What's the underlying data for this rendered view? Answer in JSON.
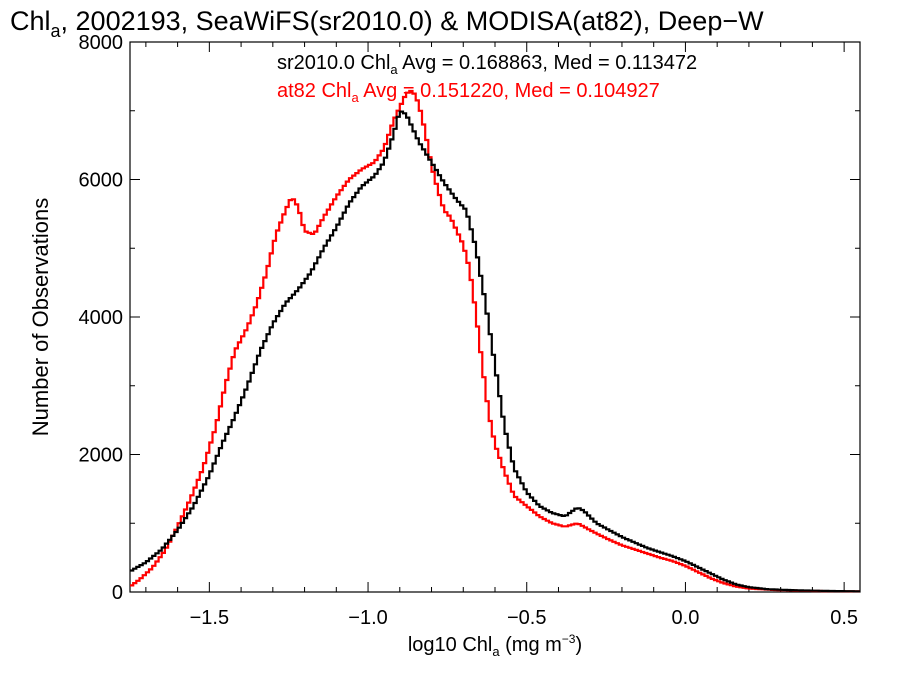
{
  "chart_data": {
    "type": "line",
    "title_parts": {
      "a": "Chl",
      "a_sub": "a",
      "b": ", 2002193, SeaWiFS(sr2010.0) & MODISA(at82), Deep−W"
    },
    "xlabel_parts": {
      "a": "log10 Chl",
      "a_sub": "a",
      "b": " (mg m",
      "sup": "−3",
      "c": ")"
    },
    "ylabel": "Number of Observations",
    "xlim": [
      -1.75,
      0.55
    ],
    "ylim": [
      0,
      8000
    ],
    "xticks": [
      -1.5,
      -1.0,
      -0.5,
      0.0,
      0.5
    ],
    "xtick_labels": [
      "−1.5",
      "−1.0",
      "−0.5",
      "0.0",
      "0.5"
    ],
    "yticks": [
      0,
      2000,
      4000,
      6000,
      8000
    ],
    "ytick_labels": [
      "0",
      "2000",
      "4000",
      "6000",
      "8000"
    ],
    "grid": false,
    "series": [
      {
        "name": "sr2010.0",
        "color": "#000000",
        "legend_parts": {
          "a": "sr2010.0 Chl",
          "a_sub": "a",
          "b": " Avg = 0.168863, Med = 0.113472"
        },
        "points": [
          [
            -1.75,
            300
          ],
          [
            -1.7,
            430
          ],
          [
            -1.65,
            620
          ],
          [
            -1.6,
            900
          ],
          [
            -1.55,
            1250
          ],
          [
            -1.5,
            1700
          ],
          [
            -1.46,
            2150
          ],
          [
            -1.42,
            2550
          ],
          [
            -1.38,
            3000
          ],
          [
            -1.34,
            3500
          ],
          [
            -1.3,
            3900
          ],
          [
            -1.26,
            4200
          ],
          [
            -1.22,
            4400
          ],
          [
            -1.18,
            4650
          ],
          [
            -1.14,
            5000
          ],
          [
            -1.1,
            5300
          ],
          [
            -1.06,
            5650
          ],
          [
            -1.02,
            5900
          ],
          [
            -0.98,
            6050
          ],
          [
            -0.95,
            6250
          ],
          [
            -0.92,
            6650
          ],
          [
            -0.9,
            7000
          ],
          [
            -0.88,
            6950
          ],
          [
            -0.86,
            6750
          ],
          [
            -0.84,
            6550
          ],
          [
            -0.8,
            6250
          ],
          [
            -0.76,
            5950
          ],
          [
            -0.72,
            5700
          ],
          [
            -0.69,
            5550
          ],
          [
            -0.66,
            5000
          ],
          [
            -0.63,
            4200
          ],
          [
            -0.6,
            3300
          ],
          [
            -0.57,
            2400
          ],
          [
            -0.54,
            1800
          ],
          [
            -0.5,
            1450
          ],
          [
            -0.46,
            1250
          ],
          [
            -0.42,
            1150
          ],
          [
            -0.38,
            1100
          ],
          [
            -0.34,
            1230
          ],
          [
            -0.32,
            1180
          ],
          [
            -0.28,
            1000
          ],
          [
            -0.24,
            900
          ],
          [
            -0.2,
            800
          ],
          [
            -0.16,
            720
          ],
          [
            -0.12,
            640
          ],
          [
            -0.08,
            580
          ],
          [
            -0.04,
            520
          ],
          [
            0.0,
            450
          ],
          [
            0.04,
            360
          ],
          [
            0.08,
            270
          ],
          [
            0.12,
            180
          ],
          [
            0.16,
            110
          ],
          [
            0.2,
            70
          ],
          [
            0.26,
            40
          ],
          [
            0.35,
            25
          ],
          [
            0.45,
            15
          ],
          [
            0.55,
            10
          ]
        ]
      },
      {
        "name": "at82",
        "color": "#ff0000",
        "legend_parts": {
          "a": "at82 Chl",
          "a_sub": "a",
          "b": " Avg = 0.151220, Med = 0.104927"
        },
        "points": [
          [
            -1.75,
            80
          ],
          [
            -1.72,
            180
          ],
          [
            -1.68,
            350
          ],
          [
            -1.64,
            600
          ],
          [
            -1.6,
            950
          ],
          [
            -1.56,
            1350
          ],
          [
            -1.52,
            1800
          ],
          [
            -1.48,
            2400
          ],
          [
            -1.45,
            3000
          ],
          [
            -1.42,
            3500
          ],
          [
            -1.38,
            3850
          ],
          [
            -1.35,
            4200
          ],
          [
            -1.32,
            4650
          ],
          [
            -1.29,
            5200
          ],
          [
            -1.26,
            5550
          ],
          [
            -1.24,
            5750
          ],
          [
            -1.22,
            5600
          ],
          [
            -1.2,
            5250
          ],
          [
            -1.17,
            5200
          ],
          [
            -1.14,
            5450
          ],
          [
            -1.1,
            5750
          ],
          [
            -1.06,
            6000
          ],
          [
            -1.02,
            6150
          ],
          [
            -0.98,
            6250
          ],
          [
            -0.95,
            6450
          ],
          [
            -0.92,
            6850
          ],
          [
            -0.9,
            7050
          ],
          [
            -0.88,
            7250
          ],
          [
            -0.86,
            7300
          ],
          [
            -0.84,
            7100
          ],
          [
            -0.82,
            6700
          ],
          [
            -0.8,
            6200
          ],
          [
            -0.78,
            5850
          ],
          [
            -0.76,
            5550
          ],
          [
            -0.74,
            5450
          ],
          [
            -0.72,
            5250
          ],
          [
            -0.7,
            5050
          ],
          [
            -0.68,
            4700
          ],
          [
            -0.66,
            4050
          ],
          [
            -0.64,
            3300
          ],
          [
            -0.62,
            2600
          ],
          [
            -0.6,
            2150
          ],
          [
            -0.57,
            1750
          ],
          [
            -0.54,
            1400
          ],
          [
            -0.5,
            1250
          ],
          [
            -0.46,
            1100
          ],
          [
            -0.42,
            1000
          ],
          [
            -0.38,
            950
          ],
          [
            -0.34,
            1000
          ],
          [
            -0.32,
            950
          ],
          [
            -0.28,
            850
          ],
          [
            -0.24,
            760
          ],
          [
            -0.2,
            680
          ],
          [
            -0.16,
            620
          ],
          [
            -0.12,
            560
          ],
          [
            -0.08,
            500
          ],
          [
            -0.04,
            450
          ],
          [
            0.0,
            380
          ],
          [
            0.04,
            290
          ],
          [
            0.08,
            200
          ],
          [
            0.12,
            130
          ],
          [
            0.16,
            80
          ],
          [
            0.2,
            50
          ],
          [
            0.28,
            30
          ],
          [
            0.4,
            15
          ],
          [
            0.55,
            8
          ]
        ]
      }
    ]
  }
}
